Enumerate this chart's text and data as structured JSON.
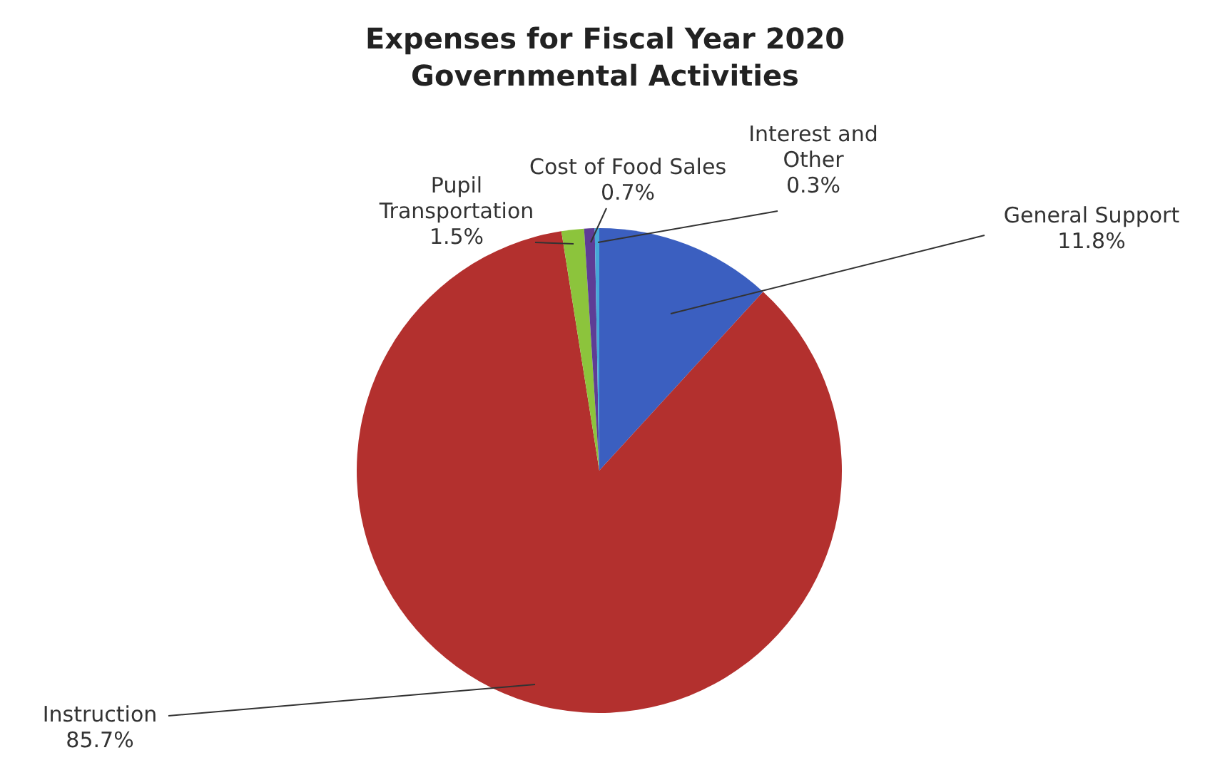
{
  "chart_data": {
    "type": "pie",
    "title": "Expenses for Fiscal Year 2020 Governmental Activities",
    "categories": [
      "General Support",
      "Instruction",
      "Pupil Transportation",
      "Cost of Food Sales",
      "Interest and Other"
    ],
    "values": [
      11.8,
      85.7,
      1.5,
      0.7,
      0.3
    ],
    "colors": [
      "#3b5fc0",
      "#b3302e",
      "#8cc43c",
      "#5e3d96",
      "#46a8d8"
    ],
    "value_labels": [
      "11.8%",
      "85.7%",
      "1.5%",
      "0.7%",
      "0.3%"
    ],
    "legend": false
  }
}
